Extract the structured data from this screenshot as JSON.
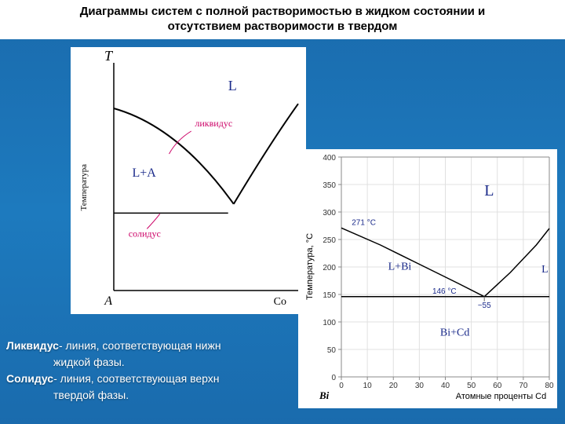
{
  "title_line1": "Диаграммы систем с полной растворимостью в жидком состоянии и",
  "title_line2": "отсутствием растворимости в твердом",
  "definitions": {
    "liquidus_term": "Ликвидус",
    "liquidus_rest": "- линия, соответствующая нижн",
    "liquidus_l2": "жидкой фазы.",
    "solidus_term": "Солидус",
    "solidus_rest": "- линия, соответствующая верхн",
    "solidus_l2": "твердой фазы."
  },
  "chart_a": {
    "type": "phase-diagram",
    "background_color": "#ffffff",
    "axis_color": "#000000",
    "ylabel": "Температура",
    "ylabel_fontsize": 11,
    "T_label": "T",
    "A_label": "A",
    "Co_label": "Со",
    "region_L": "L",
    "region_LA": "L+A",
    "liquidus_label": "ликвидус",
    "solidus_label": "солидус",
    "label_color": "#cc0066",
    "text_color_blue": "#1a2a8a",
    "liquidus_curve": {
      "points": [
        [
          0,
          0.2
        ],
        [
          0.15,
          0.25
        ],
        [
          0.35,
          0.38
        ],
        [
          0.55,
          0.55
        ],
        [
          0.65,
          0.62
        ],
        [
          0.78,
          0.52
        ],
        [
          0.9,
          0.35
        ],
        [
          1.0,
          0.22
        ]
      ],
      "line_color": "#000000",
      "line_width": 2
    },
    "solidus_line": {
      "y": 0.66,
      "x0": 0,
      "x1": 1.0,
      "line_color": "#000000",
      "line_width": 1.5
    }
  },
  "chart_b": {
    "type": "phase-diagram",
    "background_color": "#ffffff",
    "axis_color": "#888888",
    "grid_color": "#e0e0e0",
    "ylabel": "Температура, °C",
    "xlabel": "Атомные проценты Cd",
    "x_origin_label": "Bi",
    "ylabel_fontsize": 11,
    "ylim": [
      0,
      400
    ],
    "ytick_step": 50,
    "xlim": [
      0,
      80
    ],
    "xtick_step": 10,
    "region_L": "L",
    "region_LBi": "L+Bi",
    "region_BiCd": "Bi+Cd",
    "region_L_right": "L",
    "t_left": "271 °C",
    "t_eut": "146 °C",
    "x_eut_label": "~55",
    "text_color_blue": "#1a2a8a",
    "left_arm": {
      "points": [
        [
          0,
          271
        ],
        [
          15,
          240
        ],
        [
          30,
          205
        ],
        [
          45,
          170
        ],
        [
          55,
          146
        ]
      ],
      "line_color": "#000000",
      "line_width": 1.5
    },
    "right_arm": {
      "points": [
        [
          55,
          146
        ],
        [
          65,
          190
        ],
        [
          75,
          240
        ],
        [
          80,
          270
        ]
      ],
      "line_color": "#000000",
      "line_width": 1.5
    },
    "eutectic_line": {
      "y": 146,
      "x0": 0,
      "x1": 80,
      "line_color": "#000000",
      "line_width": 1.5
    }
  }
}
